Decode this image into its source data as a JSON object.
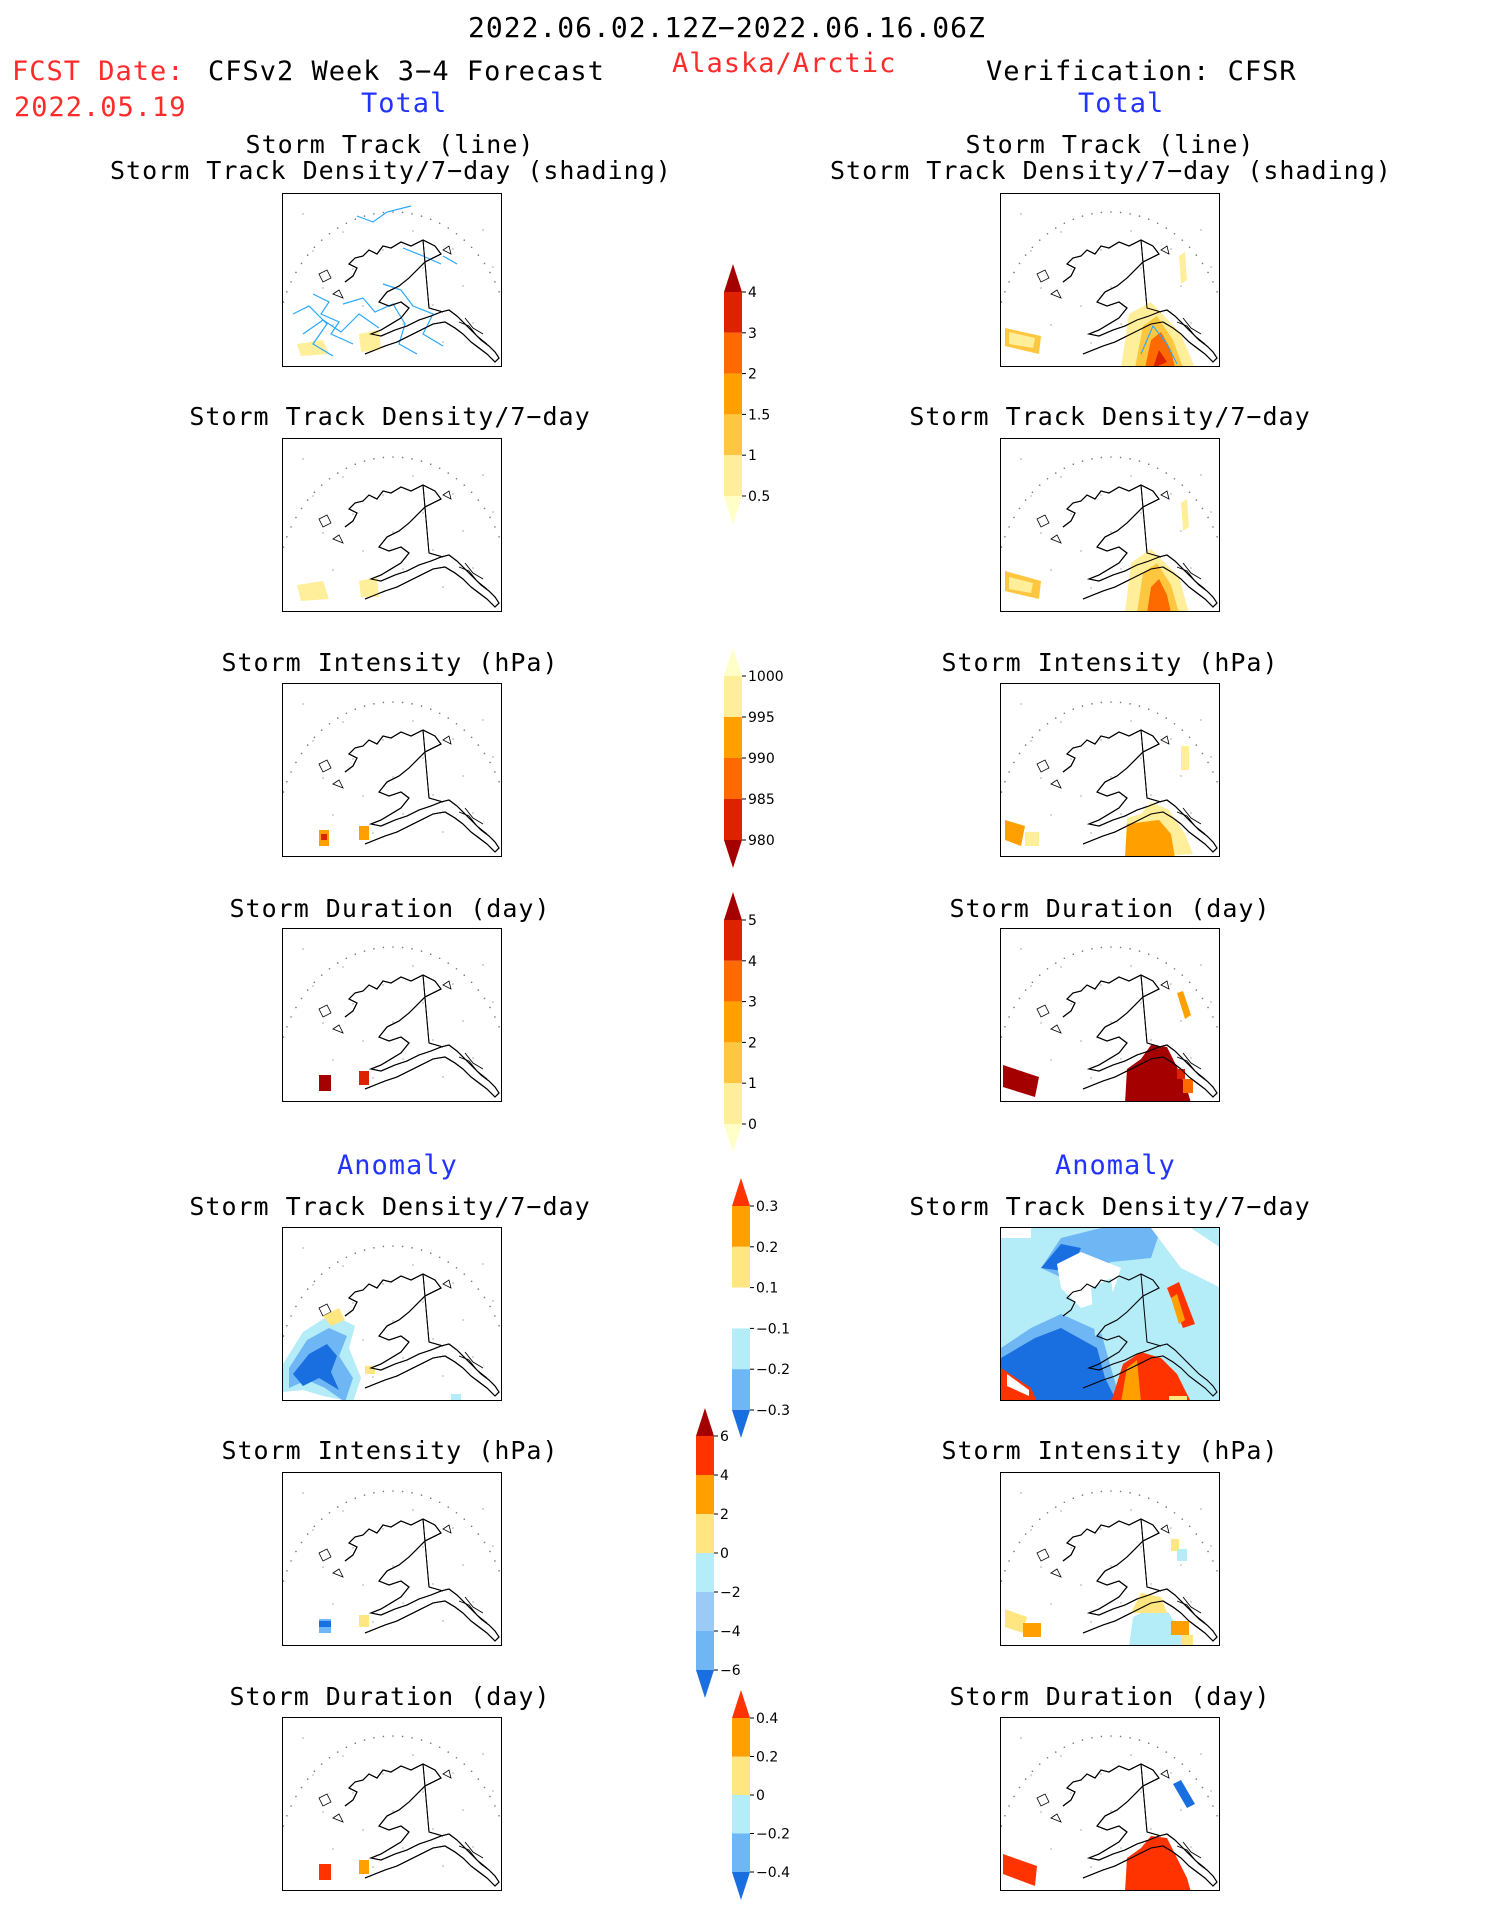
{
  "header": {
    "period": "2022.06.02.12Z−2022.06.16.06Z",
    "fcst_label": "FCST Date:",
    "fcst_date": "2022.05.19",
    "model_title": "CFSv2 Week 3−4 Forecast",
    "region": "Alaska/Arctic",
    "verification": "Verification: CFSR",
    "total_left": "Total",
    "total_right": "Total",
    "anomaly_left": "Anomaly",
    "anomaly_right": "Anomaly"
  },
  "titles": {
    "track_line": "Storm Track (line)",
    "track_density_shading": "Storm Track Density/7−day (shading)",
    "track_density": "Storm Track Density/7−day",
    "intensity": "Storm Intensity (hPa)",
    "duration": "Storm Duration (day)"
  },
  "colorbars": {
    "density_total": {
      "labels": [
        "4",
        "3",
        "2",
        "1.5",
        "1",
        "0.5"
      ],
      "colors": [
        "#a50000",
        "#dd2200",
        "#ff6a00",
        "#ffa000",
        "#ffc640",
        "#ffee9a",
        "#ffffc8"
      ]
    },
    "intensity_total": {
      "labels": [
        "1000",
        "995",
        "990",
        "985",
        "980"
      ],
      "colors": [
        "#ffffc8",
        "#ffee9a",
        "#ffa000",
        "#ff6a00",
        "#dd2200",
        "#a50000"
      ]
    },
    "duration_total": {
      "labels": [
        "5",
        "4",
        "3",
        "2",
        "1",
        "0"
      ],
      "colors": [
        "#a50000",
        "#dd2200",
        "#ff6a00",
        "#ffa000",
        "#ffc640",
        "#ffee9a",
        "#ffffc8"
      ]
    },
    "density_anom": {
      "labels": [
        "0.3",
        "0.2",
        "0.1",
        "−0.1",
        "−0.2",
        "−0.3"
      ],
      "colors": [
        "#ff3300",
        "#ffa000",
        "#ffe680",
        "#ffffff",
        "#b4ecf8",
        "#6fb6f4",
        "#1a6fe0"
      ]
    },
    "intensity_anom": {
      "labels": [
        "6",
        "4",
        "2",
        "0",
        "−2",
        "−4",
        "−6"
      ],
      "colors": [
        "#a50000",
        "#ff3300",
        "#ffa000",
        "#ffe680",
        "#b4ecf8",
        "#9ccaf6",
        "#6fb6f4",
        "#1a6fe0"
      ]
    },
    "duration_anom": {
      "labels": [
        "0.4",
        "0.2",
        "0",
        "−0.2",
        "−0.4"
      ],
      "colors": [
        "#ff3300",
        "#ffa000",
        "#ffe680",
        "#b4ecf8",
        "#6fb6f4",
        "#1a6fe0"
      ]
    }
  }
}
